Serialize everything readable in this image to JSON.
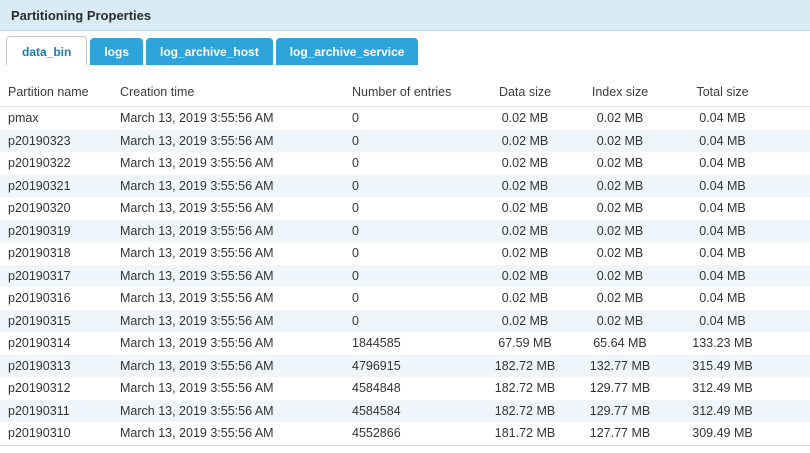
{
  "header": {
    "title": "Partitioning Properties"
  },
  "tabs": [
    {
      "label": "data_bin",
      "active": true
    },
    {
      "label": "logs",
      "active": false
    },
    {
      "label": "log_archive_host",
      "active": false
    },
    {
      "label": "log_archive_service",
      "active": false
    }
  ],
  "table": {
    "columns": [
      "Partition name",
      "Creation time",
      "Number of entries",
      "Data size",
      "Index size",
      "Total size"
    ],
    "rows": [
      [
        "pmax",
        "March 13, 2019 3:55:56 AM",
        "0",
        "0.02 MB",
        "0.02 MB",
        "0.04 MB"
      ],
      [
        "p20190323",
        "March 13, 2019 3:55:56 AM",
        "0",
        "0.02 MB",
        "0.02 MB",
        "0.04 MB"
      ],
      [
        "p20190322",
        "March 13, 2019 3:55:56 AM",
        "0",
        "0.02 MB",
        "0.02 MB",
        "0.04 MB"
      ],
      [
        "p20190321",
        "March 13, 2019 3:55:56 AM",
        "0",
        "0.02 MB",
        "0.02 MB",
        "0.04 MB"
      ],
      [
        "p20190320",
        "March 13, 2019 3:55:56 AM",
        "0",
        "0.02 MB",
        "0.02 MB",
        "0.04 MB"
      ],
      [
        "p20190319",
        "March 13, 2019 3:55:56 AM",
        "0",
        "0.02 MB",
        "0.02 MB",
        "0.04 MB"
      ],
      [
        "p20190318",
        "March 13, 2019 3:55:56 AM",
        "0",
        "0.02 MB",
        "0.02 MB",
        "0.04 MB"
      ],
      [
        "p20190317",
        "March 13, 2019 3:55:56 AM",
        "0",
        "0.02 MB",
        "0.02 MB",
        "0.04 MB"
      ],
      [
        "p20190316",
        "March 13, 2019 3:55:56 AM",
        "0",
        "0.02 MB",
        "0.02 MB",
        "0.04 MB"
      ],
      [
        "p20190315",
        "March 13, 2019 3:55:56 AM",
        "0",
        "0.02 MB",
        "0.02 MB",
        "0.04 MB"
      ],
      [
        "p20190314",
        "March 13, 2019 3:55:56 AM",
        "1844585",
        "67.59 MB",
        "65.64 MB",
        "133.23 MB"
      ],
      [
        "p20190313",
        "March 13, 2019 3:55:56 AM",
        "4796915",
        "182.72 MB",
        "132.77 MB",
        "315.49 MB"
      ],
      [
        "p20190312",
        "March 13, 2019 3:55:56 AM",
        "4584848",
        "182.72 MB",
        "129.77 MB",
        "312.49 MB"
      ],
      [
        "p20190311",
        "March 13, 2019 3:55:56 AM",
        "4584584",
        "182.72 MB",
        "129.77 MB",
        "312.49 MB"
      ],
      [
        "p20190310",
        "March 13, 2019 3:55:56 AM",
        "4552866",
        "181.72 MB",
        "127.77 MB",
        "309.49 MB"
      ]
    ]
  },
  "colors": {
    "accent": "#2ea4da",
    "active_tab_text": "#1b7db5",
    "panel_header_bg": "#d9ecf6",
    "panel_header_border": "#c2dcec",
    "row_alt_bg": "#eef6fb",
    "table_bottom_border": "#cde2ef",
    "title_text": "#2b2b2b",
    "cell_text": "#333333"
  }
}
